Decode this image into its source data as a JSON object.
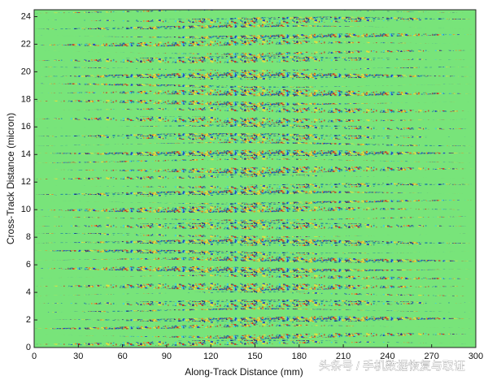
{
  "chart_data": {
    "type": "heatmap",
    "xlabel": "Along-Track Distance (mm)",
    "ylabel": "Cross-Track Distance (micron)",
    "xlim": [
      0,
      300
    ],
    "ylim": [
      0,
      24.5
    ],
    "xticks": [
      0,
      30,
      60,
      90,
      120,
      150,
      180,
      210,
      240,
      270,
      300
    ],
    "yticks": [
      0,
      2,
      4,
      6,
      8,
      10,
      12,
      14,
      16,
      18,
      20,
      22,
      24
    ]
  },
  "watermark": "头条号 / 手机数据恢复与取证"
}
